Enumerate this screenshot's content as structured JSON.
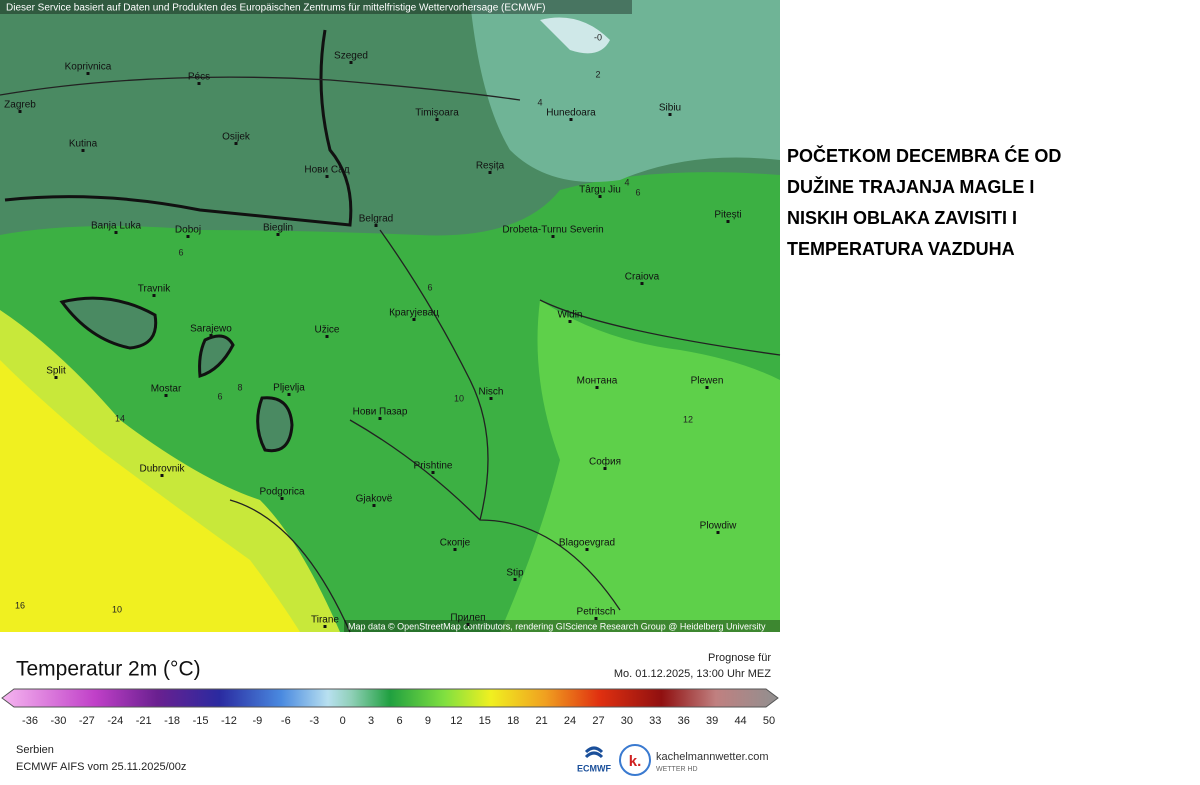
{
  "map": {
    "attribution_top": "Dieser Service basiert auf Daten und Produkten des Europäischen Zentrums für mittelfristige Wettervorhersage (ECMWF)",
    "attribution_bottom": "Map data © OpenStreetMap contributors, rendering GIScience Research Group @ Heidelberg University",
    "places": [
      "Koprivnica",
      "Pécs",
      "Szeged",
      "Zagreb",
      "Kutina",
      "Osijek",
      "Timișoara",
      "Hunedoara",
      "Sibiu",
      "Нови Сад",
      "Reșița",
      "Târgu Jiu",
      "Belgrad",
      "Banja Luka",
      "Doboj",
      "Bieglin",
      "Drobeta-Turnu Severin",
      "Pitești",
      "Travnik",
      "Craiova",
      "Sarajewo",
      "Užice",
      "Крагујевац",
      "Widin",
      "Split",
      "Mostar",
      "Pljevlja",
      "Нови Пазар",
      "Nisch",
      "Монтана",
      "Plewen",
      "Dubrovnik",
      "Prishtine",
      "София",
      "Podgorica",
      "Gjakovë",
      "Plowdiw",
      "Скопје",
      "Blagoevgrad",
      "Stip",
      "Tirane",
      "Прилеп",
      "Petritsch"
    ],
    "isoline_labels": [
      "-0",
      "2",
      "4",
      "4",
      "6",
      "6",
      "6",
      "6",
      "8",
      "10",
      "12",
      "14",
      "16",
      "10"
    ]
  },
  "headline": [
    "POČETKOM DECEMBRA ĆE OD",
    "DUŽINE TRAJANJA MAGLE I",
    "NISKIH OBLAKA ZAVISITI I",
    "TEMPERATURA VAZDUHA"
  ],
  "legend": {
    "title": "Temperatur 2m (°C)",
    "prognosis_label": "Prognose für",
    "prognosis_time": "Mo. 01.12.2025, 13:00 Uhr MEZ",
    "scale_ticks": [
      -36,
      -30,
      -27,
      -24,
      -21,
      -18,
      -15,
      -12,
      -9,
      -6,
      -3,
      0,
      3,
      6,
      9,
      12,
      15,
      18,
      21,
      24,
      27,
      30,
      33,
      36,
      39,
      44,
      50
    ],
    "region": "Serbien",
    "model_run": "ECMWF AIFS vom 25.11.2025/00z",
    "logo_ecmwf": "ECMWF",
    "logo_k": "k.",
    "logo_site": "kachelmannwetter.com",
    "logo_sub": "WETTER HD"
  }
}
